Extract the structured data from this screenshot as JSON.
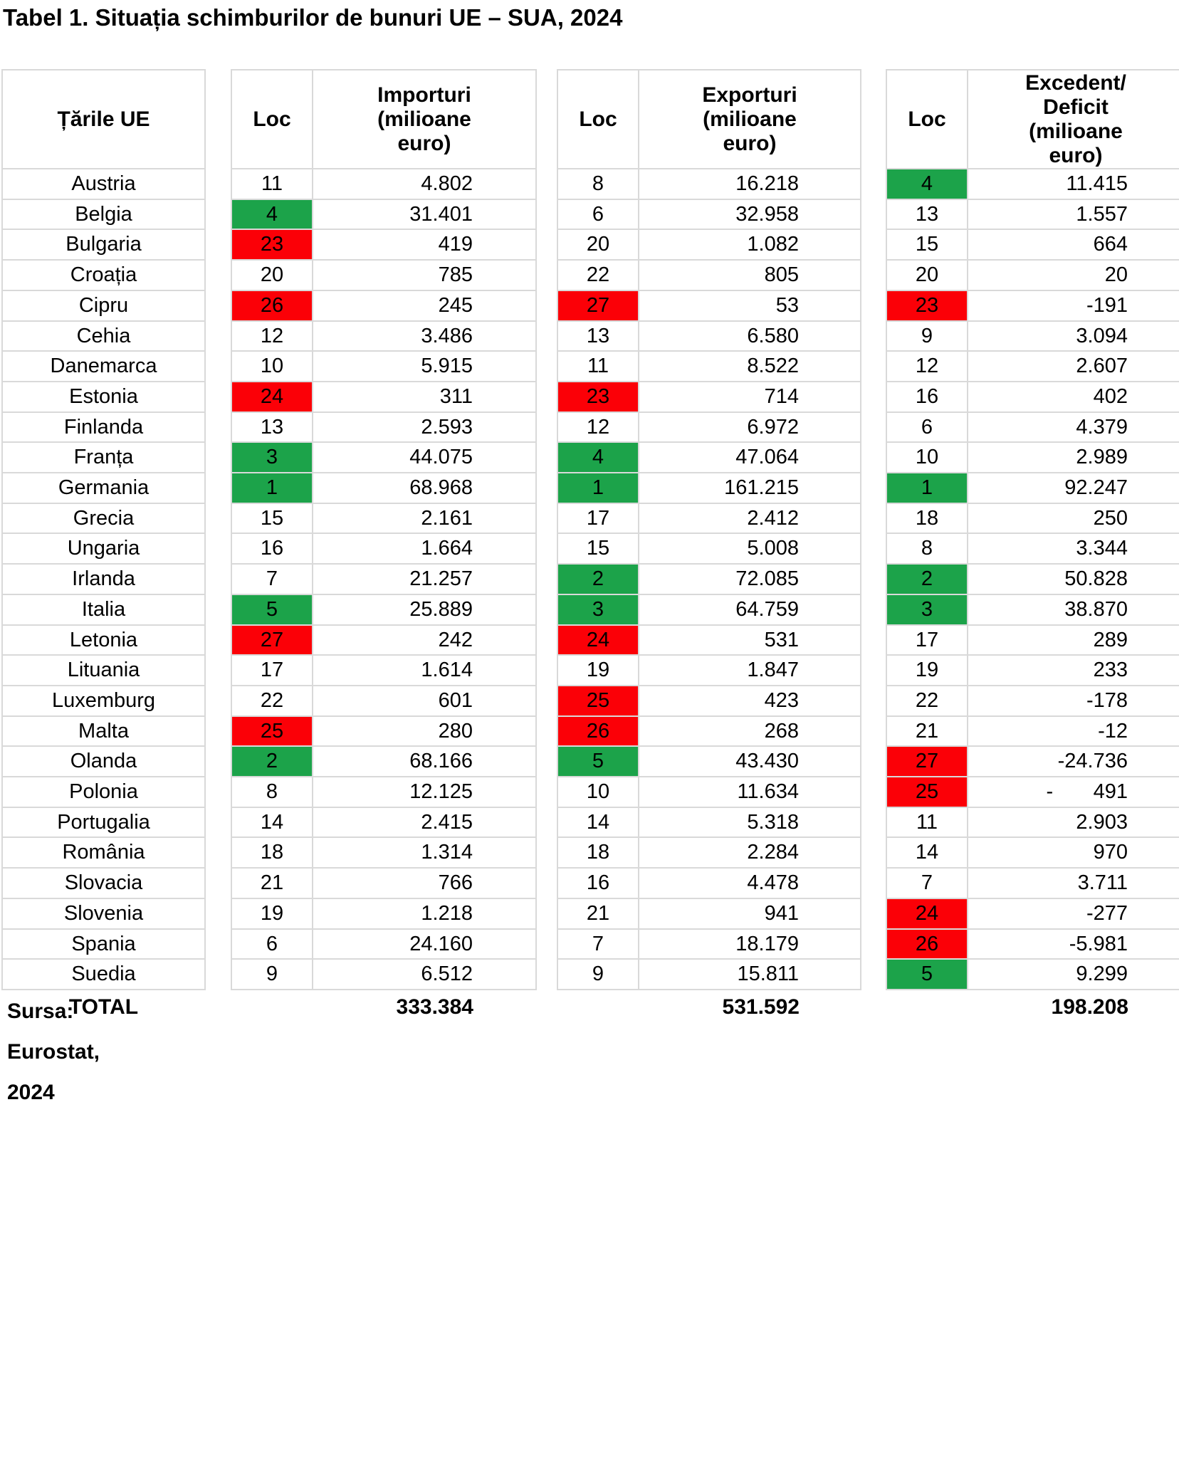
{
  "title": "Tabel 1. Situația schimburilor de bunuri UE – SUA, 2024",
  "source_note": "Sursa:\nEurostat,\n2024",
  "colors": {
    "highlight_green": "#1CA34A",
    "highlight_red": "#FB0007",
    "grid": "#D9D9D9"
  },
  "table": {
    "country_header": "Țările UE",
    "rank_header": "Loc",
    "imports_header": "Importuri\n(milioane\neuro)",
    "exports_header": "Exporturi\n(milioane\neuro)",
    "balance_header": "Excedent/\nDeficit\n(milioane\neuro)",
    "total_label": "TOTAL",
    "totals": {
      "imports": "333.384",
      "exports": "531.592",
      "balance": "198.208"
    },
    "rows": [
      {
        "country": "Austria",
        "imp_rank": "11",
        "imp_color": "none",
        "imp": "4.802",
        "exp_rank": "8",
        "exp_color": "none",
        "exp": "16.218",
        "bal_rank": "4",
        "bal_color": "green",
        "bal": "11.415"
      },
      {
        "country": "Belgia",
        "imp_rank": "4",
        "imp_color": "green",
        "imp": "31.401",
        "exp_rank": "6",
        "exp_color": "none",
        "exp": "32.958",
        "bal_rank": "13",
        "bal_color": "none",
        "bal": "1.557"
      },
      {
        "country": "Bulgaria",
        "imp_rank": "23",
        "imp_color": "red",
        "imp": "419",
        "exp_rank": "20",
        "exp_color": "none",
        "exp": "1.082",
        "bal_rank": "15",
        "bal_color": "none",
        "bal": "664"
      },
      {
        "country": "Croația",
        "imp_rank": "20",
        "imp_color": "none",
        "imp": "785",
        "exp_rank": "22",
        "exp_color": "none",
        "exp": "805",
        "bal_rank": "20",
        "bal_color": "none",
        "bal": "20"
      },
      {
        "country": "Cipru",
        "imp_rank": "26",
        "imp_color": "red",
        "imp": "245",
        "exp_rank": "27",
        "exp_color": "red",
        "exp": "53",
        "bal_rank": "23",
        "bal_color": "red",
        "bal": "-191"
      },
      {
        "country": "Cehia",
        "imp_rank": "12",
        "imp_color": "none",
        "imp": "3.486",
        "exp_rank": "13",
        "exp_color": "none",
        "exp": "6.580",
        "bal_rank": "9",
        "bal_color": "none",
        "bal": "3.094"
      },
      {
        "country": "Danemarca",
        "imp_rank": "10",
        "imp_color": "none",
        "imp": "5.915",
        "exp_rank": "11",
        "exp_color": "none",
        "exp": "8.522",
        "bal_rank": "12",
        "bal_color": "none",
        "bal": "2.607"
      },
      {
        "country": "Estonia",
        "imp_rank": "24",
        "imp_color": "red",
        "imp": "311",
        "exp_rank": "23",
        "exp_color": "red",
        "exp": "714",
        "bal_rank": "16",
        "bal_color": "none",
        "bal": "402"
      },
      {
        "country": "Finlanda",
        "imp_rank": "13",
        "imp_color": "none",
        "imp": "2.593",
        "exp_rank": "12",
        "exp_color": "none",
        "exp": "6.972",
        "bal_rank": "6",
        "bal_color": "none",
        "bal": "4.379"
      },
      {
        "country": "Franța",
        "imp_rank": "3",
        "imp_color": "green",
        "imp": "44.075",
        "exp_rank": "4",
        "exp_color": "green",
        "exp": "47.064",
        "bal_rank": "10",
        "bal_color": "none",
        "bal": "2.989"
      },
      {
        "country": "Germania",
        "imp_rank": "1",
        "imp_color": "green",
        "imp": "68.968",
        "exp_rank": "1",
        "exp_color": "green",
        "exp": "161.215",
        "bal_rank": "1",
        "bal_color": "green",
        "bal": "92.247"
      },
      {
        "country": "Grecia",
        "imp_rank": "15",
        "imp_color": "none",
        "imp": "2.161",
        "exp_rank": "17",
        "exp_color": "none",
        "exp": "2.412",
        "bal_rank": "18",
        "bal_color": "none",
        "bal": "250"
      },
      {
        "country": "Ungaria",
        "imp_rank": "16",
        "imp_color": "none",
        "imp": "1.664",
        "exp_rank": "15",
        "exp_color": "none",
        "exp": "5.008",
        "bal_rank": "8",
        "bal_color": "none",
        "bal": "3.344"
      },
      {
        "country": "Irlanda",
        "imp_rank": "7",
        "imp_color": "none",
        "imp": "21.257",
        "exp_rank": "2",
        "exp_color": "green",
        "exp": "72.085",
        "bal_rank": "2",
        "bal_color": "green",
        "bal": "50.828"
      },
      {
        "country": "Italia",
        "imp_rank": "5",
        "imp_color": "green",
        "imp": "25.889",
        "exp_rank": "3",
        "exp_color": "green",
        "exp": "64.759",
        "bal_rank": "3",
        "bal_color": "green",
        "bal": "38.870"
      },
      {
        "country": "Letonia",
        "imp_rank": "27",
        "imp_color": "red",
        "imp": "242",
        "exp_rank": "24",
        "exp_color": "red",
        "exp": "531",
        "bal_rank": "17",
        "bal_color": "none",
        "bal": "289"
      },
      {
        "country": "Lituania",
        "imp_rank": "17",
        "imp_color": "none",
        "imp": "1.614",
        "exp_rank": "19",
        "exp_color": "none",
        "exp": "1.847",
        "bal_rank": "19",
        "bal_color": "none",
        "bal": "233"
      },
      {
        "country": "Luxemburg",
        "imp_rank": "22",
        "imp_color": "none",
        "imp": "601",
        "exp_rank": "25",
        "exp_color": "red",
        "exp": "423",
        "bal_rank": "22",
        "bal_color": "none",
        "bal": "-178"
      },
      {
        "country": "Malta",
        "imp_rank": "25",
        "imp_color": "red",
        "imp": "280",
        "exp_rank": "26",
        "exp_color": "red",
        "exp": "268",
        "bal_rank": "21",
        "bal_color": "none",
        "bal": "-12"
      },
      {
        "country": "Olanda",
        "imp_rank": "2",
        "imp_color": "green",
        "imp": "68.166",
        "exp_rank": "5",
        "exp_color": "green",
        "exp": "43.430",
        "bal_rank": "27",
        "bal_color": "red",
        "bal": "-24.736"
      },
      {
        "country": "Polonia",
        "imp_rank": "8",
        "imp_color": "none",
        "imp": "12.125",
        "exp_rank": "10",
        "exp_color": "none",
        "exp": "11.634",
        "bal_rank": "25",
        "bal_color": "red",
        "bal": "-       491"
      },
      {
        "country": "Portugalia",
        "imp_rank": "14",
        "imp_color": "none",
        "imp": "2.415",
        "exp_rank": "14",
        "exp_color": "none",
        "exp": "5.318",
        "bal_rank": "11",
        "bal_color": "none",
        "bal": "2.903"
      },
      {
        "country": "România",
        "imp_rank": "18",
        "imp_color": "none",
        "imp": "1.314",
        "exp_rank": "18",
        "exp_color": "none",
        "exp": "2.284",
        "bal_rank": "14",
        "bal_color": "none",
        "bal": "970"
      },
      {
        "country": "Slovacia",
        "imp_rank": "21",
        "imp_color": "none",
        "imp": "766",
        "exp_rank": "16",
        "exp_color": "none",
        "exp": "4.478",
        "bal_rank": "7",
        "bal_color": "none",
        "bal": "3.711"
      },
      {
        "country": "Slovenia",
        "imp_rank": "19",
        "imp_color": "none",
        "imp": "1.218",
        "exp_rank": "21",
        "exp_color": "none",
        "exp": "941",
        "bal_rank": "24",
        "bal_color": "red",
        "bal": "-277"
      },
      {
        "country": "Spania",
        "imp_rank": "6",
        "imp_color": "none",
        "imp": "24.160",
        "exp_rank": "7",
        "exp_color": "none",
        "exp": "18.179",
        "bal_rank": "26",
        "bal_color": "red",
        "bal": "-5.981"
      },
      {
        "country": "Suedia",
        "imp_rank": "9",
        "imp_color": "none",
        "imp": "6.512",
        "exp_rank": "9",
        "exp_color": "none",
        "exp": "15.811",
        "bal_rank": "5",
        "bal_color": "green",
        "bal": "9.299"
      }
    ]
  }
}
